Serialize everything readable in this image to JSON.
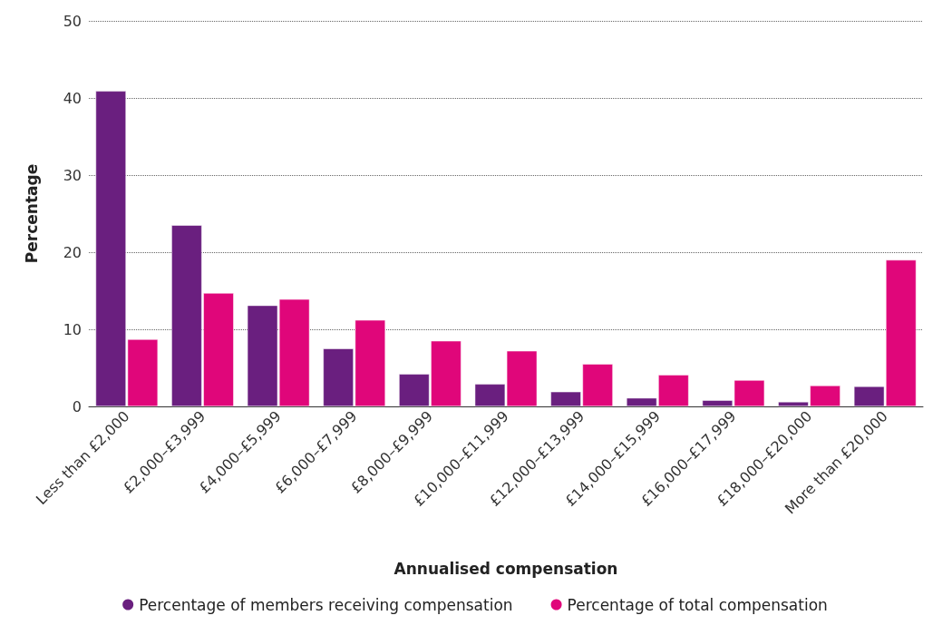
{
  "chart_data": {
    "type": "bar",
    "xlabel": "Annualised compensation",
    "ylabel": "Percentage",
    "categories": [
      "Less than £2,000",
      "£2,000–£3,999",
      "£4,000–£5,999",
      "£6,000–£7,999",
      "£8,000–£9,999",
      "£10,000–£11,999",
      "£12,000–£13,999",
      "£14,000–£15,999",
      "£16,000–£17,999",
      "£18,000–£20,000",
      "More than £20,000"
    ],
    "series": [
      {
        "name": "Percentage of members receiving compensation",
        "color": "#6a1f7f",
        "values": [
          40.9,
          23.5,
          13.1,
          7.5,
          4.2,
          2.9,
          1.9,
          1.1,
          0.8,
          0.6,
          2.6
        ]
      },
      {
        "name": "Percentage of total compensation",
        "color": "#e0067a",
        "values": [
          8.7,
          14.7,
          13.9,
          11.2,
          8.5,
          7.2,
          5.5,
          4.1,
          3.4,
          2.7,
          19.0
        ]
      }
    ],
    "ylim": [
      0,
      50
    ],
    "yticks": [
      0,
      10,
      20,
      30,
      40,
      50
    ],
    "grid": "y",
    "legend": "bottom"
  }
}
